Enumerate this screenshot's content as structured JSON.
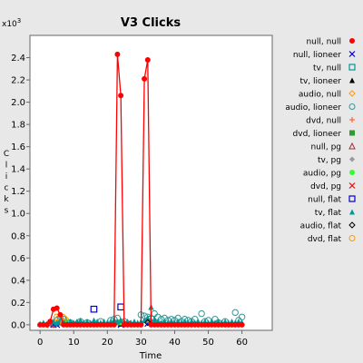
{
  "chart_data": {
    "type": "scatter",
    "title": "V3 Clicks",
    "xlabel": "Time",
    "ylabel": "Clicks",
    "y_multiplier_label": "x10",
    "y_multiplier_exp": "3",
    "xlim": [
      -3,
      69
    ],
    "ylim": [
      -0.05,
      2.6
    ],
    "x_ticks": [
      0,
      10,
      20,
      30,
      40,
      50,
      60
    ],
    "y_ticks": [
      0.0,
      0.2,
      0.4,
      0.6,
      0.8,
      1.0,
      1.2,
      1.4,
      1.6,
      1.8,
      2.0,
      2.2,
      2.4
    ],
    "y_tick_labels": [
      "0.0",
      "0.2",
      "0.4",
      "0.6",
      "0.8",
      "1.0",
      "1.2",
      "1.4",
      "1.6",
      "1.8",
      "2.0",
      "2.2",
      "2.4"
    ],
    "grid": false,
    "legend_position": "right",
    "series": [
      {
        "name": "null, null",
        "marker": "circle-filled",
        "color": "#ff0000",
        "line": true,
        "points": [
          [
            0,
            0
          ],
          [
            1,
            0
          ],
          [
            2,
            0
          ],
          [
            3,
            0.03
          ],
          [
            4,
            0.14
          ],
          [
            5,
            0.15
          ],
          [
            6,
            0.09
          ],
          [
            7,
            0
          ],
          [
            8,
            0
          ],
          [
            9,
            0
          ],
          [
            10,
            0
          ],
          [
            11,
            0
          ],
          [
            12,
            0
          ],
          [
            13,
            0
          ],
          [
            14,
            0
          ],
          [
            15,
            0
          ],
          [
            16,
            0
          ],
          [
            17,
            0
          ],
          [
            18,
            0
          ],
          [
            19,
            0
          ],
          [
            20,
            0
          ],
          [
            21,
            0
          ],
          [
            22,
            0
          ],
          [
            23,
            2.43
          ],
          [
            24,
            2.06
          ],
          [
            25,
            0
          ],
          [
            26,
            0
          ],
          [
            27,
            0
          ],
          [
            28,
            0
          ],
          [
            29,
            0
          ],
          [
            30,
            0
          ],
          [
            31,
            2.21
          ],
          [
            32,
            2.38
          ],
          [
            33,
            0
          ],
          [
            34,
            0
          ],
          [
            35,
            0
          ],
          [
            36,
            0
          ],
          [
            37,
            0
          ],
          [
            38,
            0
          ],
          [
            39,
            0
          ],
          [
            40,
            0
          ],
          [
            41,
            0
          ],
          [
            42,
            0
          ],
          [
            43,
            0
          ],
          [
            44,
            0
          ],
          [
            45,
            0
          ],
          [
            46,
            0
          ],
          [
            47,
            0
          ],
          [
            48,
            0
          ],
          [
            49,
            0
          ],
          [
            50,
            0
          ],
          [
            51,
            0
          ],
          [
            52,
            0
          ],
          [
            53,
            0
          ],
          [
            54,
            0
          ],
          [
            55,
            0
          ],
          [
            56,
            0
          ],
          [
            57,
            0
          ],
          [
            58,
            0
          ],
          [
            59,
            0
          ],
          [
            60,
            0
          ]
        ]
      },
      {
        "name": "null, lioneer",
        "marker": "x",
        "color": "#0000cc",
        "line": false,
        "points": [
          [
            4,
            0
          ],
          [
            5,
            0
          ],
          [
            6,
            0.01
          ],
          [
            23,
            0.01
          ],
          [
            24,
            0.0
          ],
          [
            32,
            0.01
          ],
          [
            33,
            0.02
          ]
        ]
      },
      {
        "name": "tv, null",
        "marker": "square-open",
        "color": "#009999",
        "line": false,
        "points": [
          [
            7,
            0.02
          ],
          [
            33,
            0.05
          ]
        ]
      },
      {
        "name": "tv, lioneer",
        "marker": "triangle-filled",
        "color": "#000000",
        "line": false,
        "points": [
          [
            24,
            0.01
          ],
          [
            33,
            0.02
          ]
        ]
      },
      {
        "name": "audio, null",
        "marker": "diamond-open",
        "color": "#ff9900",
        "line": false,
        "points": [
          [
            5,
            0.05
          ],
          [
            7,
            0.07
          ],
          [
            8,
            0.04
          ]
        ]
      },
      {
        "name": "audio, lioneer",
        "marker": "circle-open",
        "color": "#339999",
        "line": false,
        "points": [
          [
            5,
            0.04
          ],
          [
            6,
            0.06
          ],
          [
            7,
            0.05
          ],
          [
            9,
            0.02
          ],
          [
            12,
            0.03
          ],
          [
            14,
            0.02
          ],
          [
            18,
            0.03
          ],
          [
            21,
            0.04
          ],
          [
            22,
            0.05
          ],
          [
            23,
            0.06
          ],
          [
            25,
            0.03
          ],
          [
            30,
            0.09
          ],
          [
            31,
            0.08
          ],
          [
            32,
            0.07
          ],
          [
            34,
            0.1
          ],
          [
            35,
            0.07
          ],
          [
            36,
            0.05
          ],
          [
            37,
            0.06
          ],
          [
            38,
            0.04
          ],
          [
            39,
            0.05
          ],
          [
            40,
            0.04
          ],
          [
            41,
            0.06
          ],
          [
            42,
            0.03
          ],
          [
            43,
            0.05
          ],
          [
            44,
            0.04
          ],
          [
            45,
            0.03
          ],
          [
            46,
            0.05
          ],
          [
            48,
            0.1
          ],
          [
            49,
            0.03
          ],
          [
            50,
            0.04
          ],
          [
            52,
            0.05
          ],
          [
            53,
            0.02
          ],
          [
            55,
            0.03
          ],
          [
            58,
            0.11
          ],
          [
            59,
            0.04
          ],
          [
            60,
            0.07
          ]
        ]
      },
      {
        "name": "dvd, null",
        "marker": "plus",
        "color": "#ff6633",
        "line": false,
        "points": [
          [
            6,
            0.02
          ],
          [
            10,
            0.01
          ],
          [
            23,
            0.02
          ]
        ]
      },
      {
        "name": "dvd, lioneer",
        "marker": "square-filled",
        "color": "#339933",
        "line": false,
        "points": [
          [
            8,
            0.02
          ],
          [
            24,
            0.02
          ]
        ]
      },
      {
        "name": "null, pg",
        "marker": "triangle-open",
        "color": "#993333",
        "line": false,
        "points": [
          [
            4,
            0.01
          ],
          [
            33,
            0.03
          ]
        ]
      },
      {
        "name": "tv, pg",
        "marker": "diamond-filled",
        "color": "#999999",
        "line": false,
        "points": [
          [
            32,
            0.04
          ],
          [
            34,
            0.03
          ]
        ]
      },
      {
        "name": "audio, pg",
        "marker": "circle-filled",
        "color": "#33ff33",
        "line": false,
        "points": [
          [
            8,
            0.02
          ],
          [
            24,
            0.02
          ]
        ]
      },
      {
        "name": "dvd, pg",
        "marker": "x",
        "color": "#ff0000",
        "line": false,
        "points": [
          [
            3,
            0
          ],
          [
            10,
            0.01
          ],
          [
            26,
            0.01
          ]
        ]
      },
      {
        "name": "null, flat",
        "marker": "square-open",
        "color": "#0000cc",
        "line": false,
        "points": [
          [
            16,
            0.14
          ],
          [
            24,
            0.16
          ]
        ]
      },
      {
        "name": "tv, flat",
        "marker": "triangle-filled",
        "color": "#009999",
        "line": false,
        "points": [
          [
            0,
            0.01
          ],
          [
            1,
            0.02
          ],
          [
            2,
            0.01
          ],
          [
            3,
            0.02
          ],
          [
            4,
            0.03
          ],
          [
            5,
            0.02
          ],
          [
            6,
            0.04
          ],
          [
            7,
            0.03
          ],
          [
            8,
            0.02
          ],
          [
            9,
            0.03
          ],
          [
            10,
            0.02
          ],
          [
            11,
            0.03
          ],
          [
            12,
            0.04
          ],
          [
            13,
            0.02
          ],
          [
            14,
            0.03
          ],
          [
            15,
            0.02
          ],
          [
            16,
            0.04
          ],
          [
            17,
            0.03
          ],
          [
            18,
            0.02
          ],
          [
            19,
            0.03
          ],
          [
            20,
            0.02
          ],
          [
            21,
            0.03
          ],
          [
            22,
            0.04
          ],
          [
            23,
            0.03
          ],
          [
            24,
            0.04
          ],
          [
            25,
            0.02
          ],
          [
            26,
            0.03
          ],
          [
            27,
            0.02
          ],
          [
            28,
            0.03
          ],
          [
            29,
            0.02
          ],
          [
            30,
            0.03
          ],
          [
            31,
            0.04
          ],
          [
            32,
            0.06
          ],
          [
            33,
            0.16
          ],
          [
            34,
            0.05
          ],
          [
            35,
            0.03
          ],
          [
            36,
            0.02
          ],
          [
            37,
            0.03
          ],
          [
            38,
            0.02
          ],
          [
            39,
            0.03
          ],
          [
            40,
            0.02
          ],
          [
            41,
            0.03
          ],
          [
            42,
            0.02
          ],
          [
            43,
            0.03
          ],
          [
            44,
            0.02
          ],
          [
            45,
            0.03
          ],
          [
            46,
            0.02
          ],
          [
            47,
            0.03
          ],
          [
            48,
            0.02
          ],
          [
            49,
            0.03
          ],
          [
            50,
            0.02
          ],
          [
            51,
            0.03
          ],
          [
            52,
            0.02
          ],
          [
            53,
            0.03
          ],
          [
            54,
            0.02
          ],
          [
            55,
            0.03
          ],
          [
            56,
            0.02
          ],
          [
            57,
            0.03
          ],
          [
            58,
            0.02
          ],
          [
            59,
            0.03
          ],
          [
            60,
            0.02
          ]
        ]
      },
      {
        "name": "audio, flat",
        "marker": "diamond-open",
        "color": "#000000",
        "line": false,
        "points": [
          [
            32,
            0.02
          ]
        ]
      },
      {
        "name": "dvd, flat",
        "marker": "circle-open",
        "color": "#ff9900",
        "line": false,
        "points": [
          [
            5,
            0.07
          ],
          [
            7,
            0.02
          ]
        ]
      }
    ]
  }
}
